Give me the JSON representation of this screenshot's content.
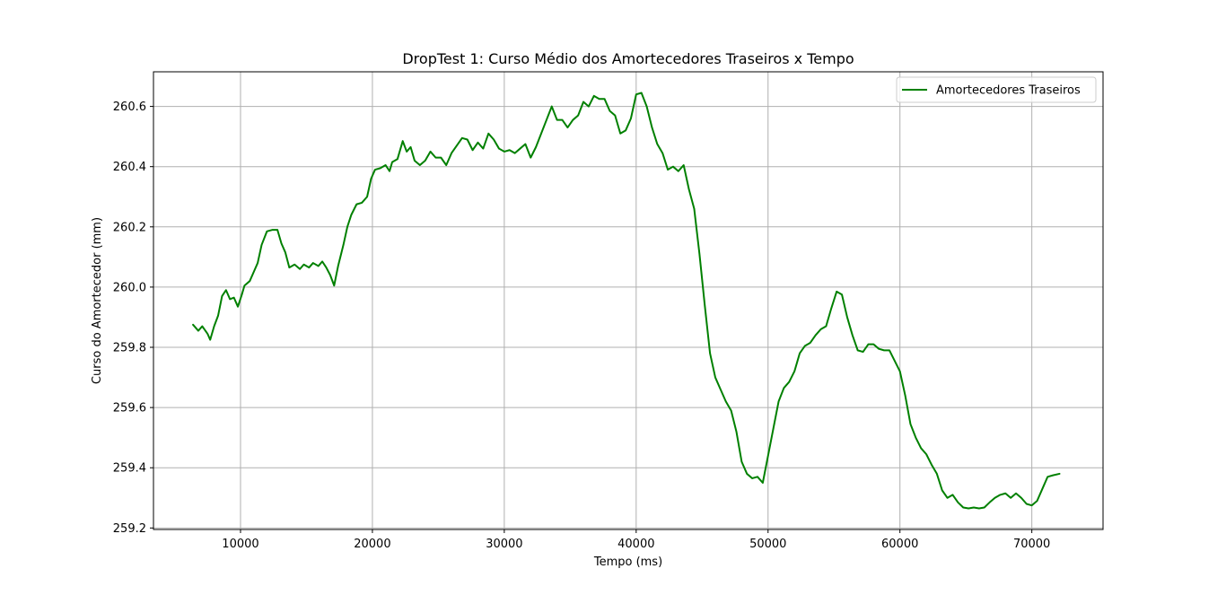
{
  "chart_data": {
    "type": "line",
    "title": "DropTest 1: Curso Médio dos Amortecedores Traseiros x Tempo",
    "xlabel": "Tempo (ms)",
    "ylabel": "Curso do Amortecedor (mm)",
    "xlim": [
      3400,
      75400
    ],
    "ylim": [
      259.195,
      260.715
    ],
    "xticks": [
      10000,
      20000,
      30000,
      40000,
      50000,
      60000,
      70000
    ],
    "yticks": [
      259.2,
      259.4,
      259.6,
      259.8,
      260.0,
      260.2,
      260.4,
      260.6
    ],
    "xtick_labels": [
      "10000",
      "20000",
      "30000",
      "40000",
      "50000",
      "60000",
      "70000"
    ],
    "ytick_labels": [
      "259.2",
      "259.4",
      "259.6",
      "259.8",
      "260.0",
      "260.2",
      "260.4",
      "260.6"
    ],
    "grid": true,
    "legend_position": "top-right",
    "series": [
      {
        "name": "Amortecedores Traseiros",
        "color": "#008000",
        "points": [
          [
            6400,
            259.875
          ],
          [
            6800,
            259.855
          ],
          [
            7100,
            259.87
          ],
          [
            7500,
            259.845
          ],
          [
            7700,
            259.825
          ],
          [
            8000,
            259.87
          ],
          [
            8300,
            259.905
          ],
          [
            8600,
            259.97
          ],
          [
            8900,
            259.99
          ],
          [
            9200,
            259.96
          ],
          [
            9500,
            259.965
          ],
          [
            9800,
            259.935
          ],
          [
            10100,
            259.975
          ],
          [
            10300,
            260.005
          ],
          [
            10700,
            260.02
          ],
          [
            11000,
            260.05
          ],
          [
            11300,
            260.08
          ],
          [
            11600,
            260.14
          ],
          [
            12000,
            260.185
          ],
          [
            12400,
            260.19
          ],
          [
            12800,
            260.19
          ],
          [
            13100,
            260.145
          ],
          [
            13400,
            260.115
          ],
          [
            13700,
            260.065
          ],
          [
            14100,
            260.075
          ],
          [
            14500,
            260.06
          ],
          [
            14800,
            260.075
          ],
          [
            15200,
            260.065
          ],
          [
            15500,
            260.08
          ],
          [
            15900,
            260.07
          ],
          [
            16200,
            260.085
          ],
          [
            16500,
            260.065
          ],
          [
            16800,
            260.04
          ],
          [
            17100,
            260.005
          ],
          [
            17400,
            260.07
          ],
          [
            17800,
            260.14
          ],
          [
            18100,
            260.2
          ],
          [
            18400,
            260.24
          ],
          [
            18800,
            260.275
          ],
          [
            19200,
            260.28
          ],
          [
            19600,
            260.3
          ],
          [
            19900,
            260.36
          ],
          [
            20200,
            260.39
          ],
          [
            20600,
            260.395
          ],
          [
            21000,
            260.405
          ],
          [
            21300,
            260.385
          ],
          [
            21500,
            260.415
          ],
          [
            21900,
            260.425
          ],
          [
            22300,
            260.485
          ],
          [
            22600,
            260.45
          ],
          [
            22900,
            260.465
          ],
          [
            23200,
            260.42
          ],
          [
            23600,
            260.405
          ],
          [
            24000,
            260.42
          ],
          [
            24400,
            260.45
          ],
          [
            24800,
            260.43
          ],
          [
            25200,
            260.43
          ],
          [
            25600,
            260.405
          ],
          [
            26000,
            260.445
          ],
          [
            26400,
            260.47
          ],
          [
            26800,
            260.495
          ],
          [
            27200,
            260.49
          ],
          [
            27600,
            260.455
          ],
          [
            28000,
            260.48
          ],
          [
            28400,
            260.46
          ],
          [
            28800,
            260.51
          ],
          [
            29200,
            260.49
          ],
          [
            29600,
            260.46
          ],
          [
            30000,
            260.45
          ],
          [
            30400,
            260.455
          ],
          [
            30800,
            260.445
          ],
          [
            31200,
            260.46
          ],
          [
            31600,
            260.475
          ],
          [
            32000,
            260.43
          ],
          [
            32400,
            260.465
          ],
          [
            32800,
            260.51
          ],
          [
            33200,
            260.555
          ],
          [
            33600,
            260.6
          ],
          [
            34000,
            260.555
          ],
          [
            34400,
            260.555
          ],
          [
            34800,
            260.53
          ],
          [
            35200,
            260.555
          ],
          [
            35600,
            260.57
          ],
          [
            36000,
            260.615
          ],
          [
            36400,
            260.6
          ],
          [
            36800,
            260.635
          ],
          [
            37200,
            260.625
          ],
          [
            37600,
            260.625
          ],
          [
            38000,
            260.585
          ],
          [
            38400,
            260.57
          ],
          [
            38800,
            260.51
          ],
          [
            39200,
            260.52
          ],
          [
            39600,
            260.56
          ],
          [
            40000,
            260.64
          ],
          [
            40400,
            260.645
          ],
          [
            40800,
            260.6
          ],
          [
            41200,
            260.53
          ],
          [
            41600,
            260.475
          ],
          [
            42000,
            260.445
          ],
          [
            42400,
            260.39
          ],
          [
            42800,
            260.4
          ],
          [
            43200,
            260.385
          ],
          [
            43600,
            260.405
          ],
          [
            44000,
            260.325
          ],
          [
            44400,
            260.26
          ],
          [
            44800,
            260.11
          ],
          [
            45200,
            259.94
          ],
          [
            45600,
            259.78
          ],
          [
            46000,
            259.7
          ],
          [
            46400,
            259.66
          ],
          [
            46800,
            259.62
          ],
          [
            47200,
            259.59
          ],
          [
            47600,
            259.52
          ],
          [
            48000,
            259.42
          ],
          [
            48400,
            259.38
          ],
          [
            48800,
            259.365
          ],
          [
            49200,
            259.37
          ],
          [
            49600,
            259.35
          ],
          [
            50000,
            259.44
          ],
          [
            50400,
            259.53
          ],
          [
            50800,
            259.62
          ],
          [
            51200,
            259.665
          ],
          [
            51600,
            259.685
          ],
          [
            52000,
            259.72
          ],
          [
            52400,
            259.78
          ],
          [
            52800,
            259.805
          ],
          [
            53200,
            259.815
          ],
          [
            53600,
            259.84
          ],
          [
            54000,
            259.86
          ],
          [
            54400,
            259.87
          ],
          [
            54800,
            259.93
          ],
          [
            55200,
            259.985
          ],
          [
            55600,
            259.975
          ],
          [
            56000,
            259.9
          ],
          [
            56400,
            259.84
          ],
          [
            56800,
            259.79
          ],
          [
            57200,
            259.785
          ],
          [
            57600,
            259.81
          ],
          [
            58000,
            259.81
          ],
          [
            58400,
            259.795
          ],
          [
            58800,
            259.79
          ],
          [
            59200,
            259.79
          ],
          [
            59600,
            259.755
          ],
          [
            60000,
            259.72
          ],
          [
            60400,
            259.64
          ],
          [
            60800,
            259.545
          ],
          [
            61200,
            259.5
          ],
          [
            61600,
            259.465
          ],
          [
            62000,
            259.445
          ],
          [
            62400,
            259.41
          ],
          [
            62800,
            259.38
          ],
          [
            63200,
            259.325
          ],
          [
            63600,
            259.3
          ],
          [
            64000,
            259.31
          ],
          [
            64400,
            259.285
          ],
          [
            64800,
            259.268
          ],
          [
            65200,
            259.265
          ],
          [
            65600,
            259.268
          ],
          [
            66000,
            259.265
          ],
          [
            66400,
            259.268
          ],
          [
            66800,
            259.285
          ],
          [
            67200,
            259.3
          ],
          [
            67600,
            259.31
          ],
          [
            68000,
            259.315
          ],
          [
            68400,
            259.3
          ],
          [
            68800,
            259.315
          ],
          [
            69200,
            259.3
          ],
          [
            69600,
            259.28
          ],
          [
            70000,
            259.275
          ],
          [
            70400,
            259.29
          ],
          [
            70800,
            259.33
          ],
          [
            71200,
            259.37
          ],
          [
            71600,
            259.375
          ],
          [
            72100,
            259.38
          ]
        ]
      }
    ]
  }
}
